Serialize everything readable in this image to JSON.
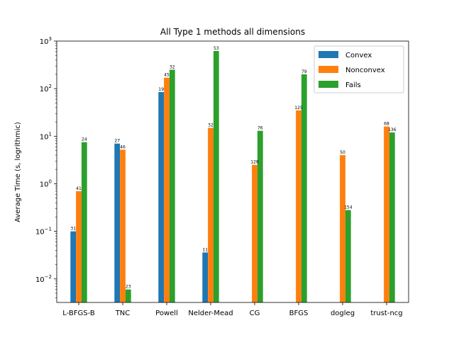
{
  "chart_data": {
    "type": "bar",
    "title": "All Type 1 methods all dimensions",
    "xlabel": "",
    "ylabel": "Average Time (s, logrithmic)",
    "yscale": "log",
    "ylim": [
      0.0032,
      1000
    ],
    "yticks": [
      {
        "value": 0.01,
        "base": "10",
        "exp": "−2"
      },
      {
        "value": 0.1,
        "base": "10",
        "exp": "−1"
      },
      {
        "value": 1,
        "base": "10",
        "exp": "0"
      },
      {
        "value": 10,
        "base": "10",
        "exp": "1"
      },
      {
        "value": 100,
        "base": "10",
        "exp": "2"
      },
      {
        "value": 1000,
        "base": "10",
        "exp": "3"
      }
    ],
    "grid": false,
    "legend_position": "top-right",
    "categories": [
      "L-BFGS-B",
      "TNC",
      "Powell",
      "Nelder-Mead",
      "CG",
      "BFGS",
      "dogleg",
      "trust-ncg"
    ],
    "series": [
      {
        "name": "Convex",
        "color": "#1f77b4",
        "values": [
          0.1,
          7.0,
          85,
          0.036,
          null,
          null,
          null,
          null
        ],
        "labels": [
          "31",
          "27",
          "19",
          "11",
          null,
          null,
          null,
          null
        ]
      },
      {
        "name": "Nonconvex",
        "color": "#ff7f0e",
        "values": [
          0.7,
          5.2,
          170,
          15,
          2.5,
          35,
          4.0,
          16
        ],
        "labels": [
          "41",
          "46",
          "45",
          "32",
          "128",
          "125",
          "50",
          "68"
        ]
      },
      {
        "name": "Fails",
        "color": "#2ca02c",
        "values": [
          7.5,
          0.006,
          250,
          620,
          13,
          200,
          0.28,
          12
        ],
        "labels": [
          "24",
          "23",
          "32",
          "53",
          "76",
          "79",
          "154",
          "136"
        ]
      }
    ]
  }
}
